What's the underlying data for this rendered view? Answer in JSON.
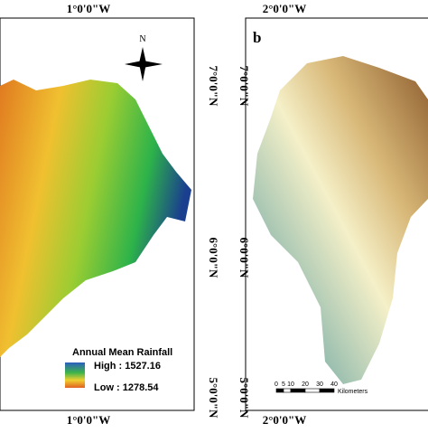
{
  "left_panel": {
    "top_label": "1°0'0\"W",
    "bottom_label": "1°0'0\"W",
    "lat_labels": [
      "7°0'0\"N",
      "6°0'0\"N",
      "5°0'0\"N"
    ],
    "north": "N",
    "legend": {
      "title": "Annual Mean Rainfall",
      "high": "High : 1527.16",
      "low": "Low : 1278.54"
    }
  },
  "right_panel": {
    "label": "b",
    "top_label": "2°0'0\"W",
    "bottom_label": "2°0'0\"W",
    "lat_labels": [
      "7°0'0\"N",
      "6°0'0\"N",
      "5°0'0\"N"
    ],
    "scale": {
      "ticks": [
        0,
        5,
        10,
        20,
        30,
        40
      ],
      "unit": "Kilometers"
    }
  }
}
